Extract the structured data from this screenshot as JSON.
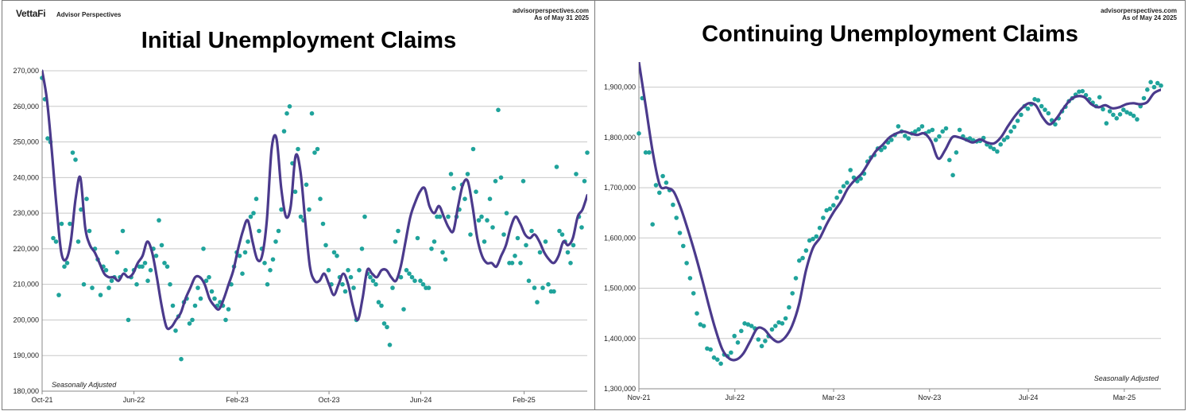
{
  "left": {
    "brand": "VettaFi",
    "brand_sub": "Advisor Perspectives",
    "source_site": "advisorperspectives.com",
    "as_of": "As of May 31 2025",
    "note": "Seasonally Adjusted"
  },
  "right": {
    "source_site": "advisorperspectives.com",
    "as_of": "As of May 24 2025",
    "note": "Seasonally Adjusted"
  },
  "colors": {
    "dots": "#1fa39b",
    "line": "#4b3a8c",
    "grid": "#c8c8c8",
    "axis": "#888888"
  },
  "chart_data": [
    {
      "type": "scatter",
      "title": "Initial Unemployment Claims",
      "x_unit": "weeks since Oct-21",
      "xlim": [
        0,
        190
      ],
      "ylim": [
        180000,
        270000
      ],
      "yticks": [
        180000,
        190000,
        200000,
        210000,
        220000,
        230000,
        240000,
        250000,
        260000,
        270000
      ],
      "ytick_labels": [
        "180,000",
        "190,000",
        "200,000",
        "210,000",
        "220,000",
        "230,000",
        "240,000",
        "250,000",
        "260,000",
        "270,000"
      ],
      "xticks": [
        0,
        32,
        68,
        100,
        132,
        168
      ],
      "xtick_labels": [
        "Oct-21",
        "Jun-22",
        "Feb-23",
        "Oct-23",
        "Jun-24",
        "Feb-25"
      ],
      "grid": true,
      "series": [
        {
          "values": [
            268000,
            262000,
            251000,
            250000,
            223000,
            222000,
            207000,
            227000,
            215000,
            216000,
            227000,
            247000,
            245000,
            222000,
            231000,
            210000,
            234000,
            225000,
            209000,
            220000,
            217000,
            207000,
            215000,
            214000,
            209000,
            211000,
            212000,
            219000,
            212000,
            225000,
            214000,
            200000,
            212000,
            214000,
            210000,
            215000,
            215000,
            216000,
            211000,
            214000,
            220000,
            218000,
            228000,
            221000,
            216000,
            215000,
            210000,
            204000,
            197000,
            201000,
            189000,
            205000,
            206000,
            199000,
            200000,
            204000,
            209000,
            206000,
            220000,
            211000,
            212000,
            208000,
            206000,
            204000,
            205000,
            204000,
            200000,
            203000,
            210000,
            215000,
            219000,
            218000,
            213000,
            219000,
            222000,
            229000,
            230000,
            234000,
            225000,
            220000,
            216000,
            210000,
            214000,
            217000,
            222000,
            225000,
            231000,
            253000,
            258000,
            260000,
            244000,
            236000,
            248000,
            229000,
            228000,
            238000,
            231000,
            258000,
            247000,
            248000,
            234000,
            227000,
            221000,
            214000,
            210000,
            219000,
            218000,
            212000,
            210000,
            208000,
            214000,
            212000,
            209000,
            200000,
            214000,
            220000,
            229000,
            213000,
            212000,
            211000,
            210000,
            205000,
            204000,
            199000,
            198000,
            193000,
            209000,
            222000,
            225000,
            212000,
            203000,
            214000,
            213000,
            212000,
            211000,
            223000,
            211000,
            210000,
            209000,
            209000,
            220000,
            222000,
            229000,
            229000,
            219000,
            217000,
            229000,
            241000,
            237000,
            229000,
            231000,
            238000,
            234000,
            241000,
            224000,
            248000,
            236000,
            228000,
            229000,
            222000,
            228000,
            234000,
            226000,
            239000,
            259000,
            240000,
            224000,
            230000,
            216000,
            216000,
            218000,
            223000,
            216000,
            239000,
            221000,
            211000,
            225000,
            209000,
            205000,
            219000,
            209000,
            222000,
            210000,
            208000,
            208000,
            243000,
            225000,
            224000,
            222000,
            219000,
            216000,
            221000,
            241000,
            229000,
            226000,
            239000,
            247000
          ],
          "smoothed": [
            270000,
            262000,
            248000,
            232000,
            219000,
            217000,
            222000,
            234000,
            240000,
            226000,
            221000,
            219000,
            216000,
            213000,
            212000,
            212000,
            211000,
            213000,
            212000,
            213000,
            216000,
            218000,
            222000,
            219000,
            212000,
            204000,
            198000,
            198000,
            200000,
            202000,
            206000,
            209000,
            212000,
            212000,
            210000,
            206000,
            204000,
            203000,
            206000,
            210000,
            214000,
            220000,
            225000,
            228000,
            222000,
            217000,
            218000,
            228000,
            248000,
            251000,
            237000,
            229000,
            232000,
            246000,
            242000,
            228000,
            215000,
            211000,
            211000,
            213000,
            210000,
            207000,
            210000,
            213000,
            210000,
            204000,
            200000,
            206000,
            214000,
            213000,
            212000,
            214000,
            214000,
            212000,
            211000,
            215000,
            222000,
            229000,
            233000,
            236000,
            237000,
            232000,
            230000,
            232000,
            229000,
            226000,
            225000,
            232000,
            238000,
            239000,
            232000,
            223000,
            218000,
            216000,
            216000,
            215000,
            218000,
            221000,
            226000,
            229000,
            227000,
            224000,
            223000,
            224000,
            222000,
            219000,
            217000,
            216000,
            218000,
            222000,
            221000,
            223000,
            229000,
            231000,
            235000
          ]
        }
      ]
    },
    {
      "type": "scatter",
      "title": "Continuing Unemployment Claims",
      "x_unit": "weeks since Nov-21",
      "xlim": [
        0,
        185
      ],
      "ylim": [
        1300000,
        1950000
      ],
      "yticks": [
        1300000,
        1400000,
        1500000,
        1600000,
        1700000,
        1800000,
        1900000
      ],
      "ytick_labels": [
        "1,300,000",
        "1,400,000",
        "1,500,000",
        "1,600,000",
        "1,700,000",
        "1,800,000",
        "1,900,000"
      ],
      "xticks": [
        0,
        34,
        69,
        103,
        138,
        172
      ],
      "xtick_labels": [
        "Nov-21",
        "Jul-22",
        "Mar-23",
        "Nov-23",
        "Jul-24",
        "Mar-25"
      ],
      "grid": true,
      "series": [
        {
          "values": [
            1808000,
            1878000,
            1770000,
            1770000,
            1627000,
            1705000,
            1690000,
            1723000,
            1710000,
            1695000,
            1666000,
            1640000,
            1610000,
            1584000,
            1550000,
            1520000,
            1490000,
            1450000,
            1428000,
            1425000,
            1380000,
            1378000,
            1362000,
            1358000,
            1350000,
            1368000,
            1365000,
            1372000,
            1405000,
            1392000,
            1415000,
            1430000,
            1428000,
            1425000,
            1420000,
            1398000,
            1385000,
            1395000,
            1405000,
            1418000,
            1425000,
            1432000,
            1430000,
            1440000,
            1462000,
            1490000,
            1520000,
            1555000,
            1560000,
            1575000,
            1595000,
            1598000,
            1603000,
            1620000,
            1640000,
            1655000,
            1658000,
            1665000,
            1680000,
            1692000,
            1703000,
            1710000,
            1735000,
            1720000,
            1713000,
            1718000,
            1728000,
            1752000,
            1760000,
            1765000,
            1778000,
            1775000,
            1780000,
            1790000,
            1795000,
            1805000,
            1822000,
            1812000,
            1803000,
            1798000,
            1808000,
            1812000,
            1816000,
            1822000,
            1808000,
            1812000,
            1815000,
            1795000,
            1802000,
            1812000,
            1818000,
            1755000,
            1725000,
            1770000,
            1815000,
            1802000,
            1796000,
            1798000,
            1794000,
            1792000,
            1793000,
            1799000,
            1786000,
            1781000,
            1777000,
            1772000,
            1786000,
            1795000,
            1800000,
            1812000,
            1821000,
            1833000,
            1845000,
            1862000,
            1857000,
            1866000,
            1876000,
            1874000,
            1862000,
            1855000,
            1848000,
            1834000,
            1826000,
            1838000,
            1852000,
            1861000,
            1872000,
            1878000,
            1885000,
            1891000,
            1892000,
            1884000,
            1876000,
            1869000,
            1862000,
            1880000,
            1856000,
            1828000,
            1852000,
            1845000,
            1838000,
            1846000,
            1855000,
            1850000,
            1847000,
            1843000,
            1836000,
            1862000,
            1878000,
            1895000,
            1910000,
            1900000,
            1908000,
            1903000
          ],
          "smoothed": [
            1950000,
            1860000,
            1770000,
            1705000,
            1700000,
            1692000,
            1660000,
            1618000,
            1572000,
            1522000,
            1468000,
            1418000,
            1378000,
            1360000,
            1358000,
            1370000,
            1395000,
            1420000,
            1418000,
            1402000,
            1393000,
            1402000,
            1425000,
            1468000,
            1535000,
            1580000,
            1600000,
            1628000,
            1652000,
            1672000,
            1698000,
            1715000,
            1728000,
            1750000,
            1772000,
            1785000,
            1800000,
            1808000,
            1812000,
            1808000,
            1805000,
            1808000,
            1792000,
            1758000,
            1775000,
            1800000,
            1800000,
            1795000,
            1790000,
            1796000,
            1790000,
            1788000,
            1800000,
            1822000,
            1842000,
            1858000,
            1868000,
            1864000,
            1840000,
            1826000,
            1838000,
            1858000,
            1875000,
            1882000,
            1880000,
            1866000,
            1860000,
            1864000,
            1858000,
            1860000,
            1866000,
            1868000,
            1866000,
            1870000,
            1888000,
            1895000
          ]
        }
      ]
    }
  ]
}
